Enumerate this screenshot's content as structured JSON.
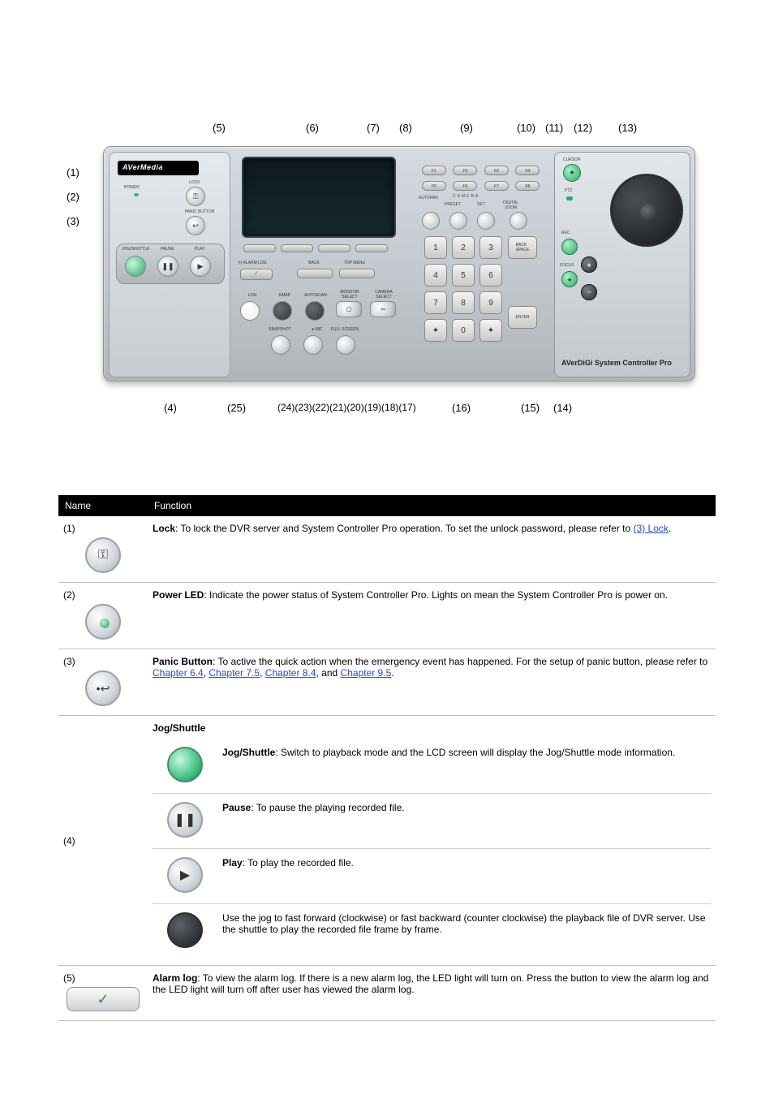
{
  "callouts_top": [
    "(5)",
    "(6)",
    "(7)",
    "(8)",
    "(9)",
    "(10)",
    "(11)",
    "(12)",
    "(13)"
  ],
  "callouts_left": [
    "(1)",
    "(2)",
    "(3)"
  ],
  "callouts_bottom": [
    "(4)",
    "(25)",
    "(24)(23)(22)(21)(20)(19)(18)(17)",
    "(16)",
    "(15)",
    "(14)"
  ],
  "brand": "AVerMedia",
  "brand_right": "AVerDiGi System Controller Pro",
  "panel_labels": {
    "power": "POWER",
    "lock": "LOCK",
    "panic": "PANIC BUTTON",
    "jog": "JOG/SHUTTLE",
    "pause": "PAUSE",
    "play": "PLAY",
    "alarmlog": "(•) ALARM LOG",
    "back": "BACK",
    "topmenu": "TOP MENU",
    "live": "LIVE",
    "emap": "EMAP",
    "autoscan": "AUTOSCAN",
    "monitorselect": "MONITOR\nSELECT",
    "cameraselect": "CAMERA\nSELECT",
    "snapshot": "SNAPSHOT",
    "mic": "● MIC",
    "fullscreen": "FULL SCREEN",
    "camera": "CAMERA",
    "autopan": "AUTOPAN",
    "preset": "PRESET",
    "set": "SET",
    "digitalzoom": "DIGITAL\nZOOM",
    "cursor": "CURSOR",
    "ptz": "PTZ",
    "rec": "REC",
    "focus": "FOCUS"
  },
  "fkeys": [
    "F1",
    "F2",
    "F3",
    "F4",
    "F5",
    "F6",
    "F7",
    "F8"
  ],
  "keypad": [
    "1",
    "2",
    "3",
    "4",
    "5",
    "6",
    "7",
    "8",
    "9",
    "✦",
    "0",
    "✦"
  ],
  "side_keys": {
    "backspace": "BACK\nSPACE",
    "enter": "ENTER"
  },
  "table": {
    "headers": [
      "Name",
      "Function"
    ],
    "rows": [
      {
        "num": "(1)",
        "icon": "key",
        "desc_html": "<b>Lock</b>: To lock the DVR server and System Controller Pro operation. To set the unlock password, please refer to <span class='link'>(3) Lock</span>."
      },
      {
        "num": "(2)",
        "icon": "green-dot",
        "desc_html": "<b>Power LED</b>: Indicate the power status of System Controller Pro. Lights on mean the System Controller Pro is power on."
      },
      {
        "num": "(3)",
        "icon": "panic",
        "desc_html": "<b>Panic Button</b>: To active the quick action when the emergency event has happened. For the setup of panic button, please refer to <span class='link'>Chapter 6.4</span>, <span class='link'>Chapter 7.5</span>, <span class='link'>Chapter 8.4</span>, and <span class='link'>Chapter 9.5</span>."
      },
      {
        "num": "(4)",
        "icon": null,
        "desc_html": "<b>Jog/Shuttle</b>",
        "sub": [
          {
            "icon": "big-green",
            "text": "<b>Jog/Shuttle</b>: Switch to playback mode and the LCD screen will display the Jog/Shuttle mode information."
          },
          {
            "icon": "pause",
            "text": "<b>Pause</b>: To pause the playing recorded file."
          },
          {
            "icon": "play",
            "text": "<b>Play</b>: To play the recorded file."
          },
          {
            "icon": "dark-knob",
            "text": "Use the jog to fast forward (clockwise) or fast backward (counter clockwise) the playback file of DVR server. Use the shuttle to play the recorded file frame by frame."
          }
        ]
      },
      {
        "num": "(5)",
        "icon": "pill-check",
        "desc_html": "<b>Alarm log</b>: To view the alarm log. If there is a new alarm log, the LED light will turn on. Press the button to view the alarm log and the LED light will turn off after user has viewed the alarm log."
      }
    ]
  },
  "colors": {
    "page_bg": "#ffffff",
    "panel_grad_top": "#d5dbe1",
    "panel_grad_bot": "#b0b5b9",
    "lcd_bg": "#17282c",
    "link": "#1a4fd6",
    "table_header_bg": "#000000",
    "table_header_fg": "#ffffff",
    "border": "#bfbfbf"
  }
}
